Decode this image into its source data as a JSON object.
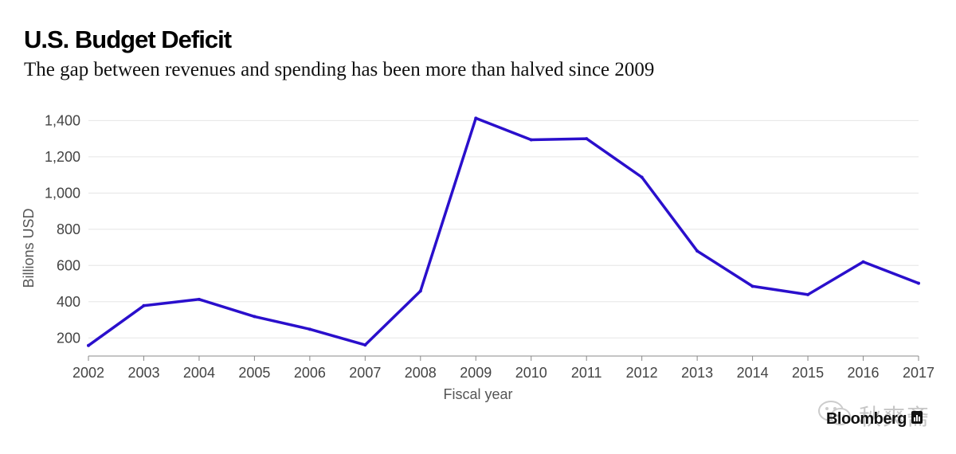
{
  "header": {
    "title": "U.S. Budget Deficit",
    "subtitle": "The gap between revenues and spending has been more than halved since 2009"
  },
  "branding": {
    "watermark_text": "秋爽斋",
    "brand_name": "Bloomberg"
  },
  "colors": {
    "line": "#2a0fcc",
    "grid": "#e5e5e5",
    "axis": "#888888",
    "tick_text": "#444444"
  },
  "chart_data": {
    "type": "line",
    "title": "U.S. Budget Deficit",
    "subtitle": "The gap between revenues and spending has been more than halved since 2009",
    "xlabel": "Fiscal year",
    "ylabel": "Billions USD",
    "categories": [
      "2002",
      "2003",
      "2004",
      "2005",
      "2006",
      "2007",
      "2008",
      "2009",
      "2010",
      "2011",
      "2012",
      "2013",
      "2014",
      "2015",
      "2016",
      "2017"
    ],
    "series": [
      {
        "name": "Budget deficit",
        "values": [
          158,
          378,
          413,
          318,
          248,
          161,
          459,
          1413,
          1294,
          1300,
          1087,
          680,
          485,
          439,
          620,
          502
        ]
      }
    ],
    "ylim": [
      100,
      1450
    ],
    "yticks": [
      200,
      400,
      600,
      800,
      1000,
      1200,
      1400
    ],
    "ytick_labels": [
      "200",
      "400",
      "600",
      "800",
      "1,000",
      "1,200",
      "1,400"
    ],
    "grid": true,
    "legend": "none"
  }
}
